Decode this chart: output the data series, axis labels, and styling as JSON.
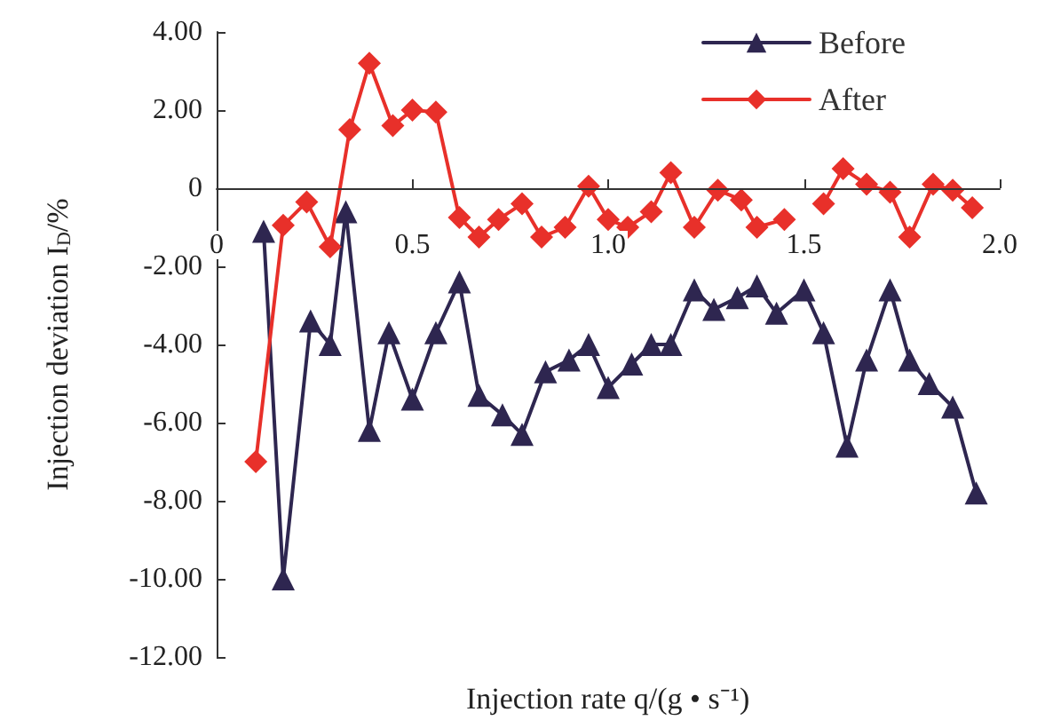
{
  "chart_data": {
    "type": "line",
    "xlabel": "Injection rate q/(g • s⁻¹)",
    "ylabel": "Injection deviation I$_{D}$/%",
    "xlim": [
      0,
      2.0
    ],
    "xticks": [
      0,
      0.5,
      {
        "value": 1,
        "label": "1.0"
      },
      1.5,
      {
        "value": 2,
        "label": "2.0"
      }
    ],
    "ylim": [
      -12,
      4
    ],
    "yticks": [
      {
        "value": -12,
        "label": "-12.00"
      },
      {
        "value": -10,
        "label": "-10.00"
      },
      {
        "value": -8,
        "label": "-8.00"
      },
      {
        "value": -6,
        "label": "-6.00"
      },
      {
        "value": -4,
        "label": "-4.00"
      },
      {
        "value": -2,
        "label": "-2.00"
      },
      0,
      {
        "value": 2,
        "label": "2.00"
      },
      {
        "value": 4,
        "label": "4.00"
      }
    ],
    "grid": false,
    "legend": "top right",
    "line_style": "solid",
    "series": [
      {
        "name": "Before",
        "color": "#2e2650",
        "marker": "triangle",
        "x": [
          0.12,
          0.17,
          0.24,
          0.29,
          0.33,
          0.39,
          0.44,
          0.5,
          0.56,
          0.62,
          0.67,
          0.73,
          0.78,
          0.84,
          0.9,
          0.95,
          1.0,
          1.06,
          1.11,
          1.16,
          1.22,
          1.27,
          1.33,
          1.38,
          1.43,
          1.5,
          1.55,
          1.61,
          1.66,
          1.72,
          1.77,
          1.82,
          1.88,
          1.94
        ],
        "values": [
          -1.1,
          -10.0,
          -3.4,
          -4.0,
          -0.6,
          -6.2,
          -3.7,
          -5.4,
          -3.7,
          -2.4,
          -5.3,
          -5.8,
          -6.3,
          -4.7,
          -4.4,
          -4.0,
          -5.1,
          -4.5,
          -4.0,
          -4.0,
          -2.6,
          -3.1,
          -2.8,
          -2.5,
          -3.2,
          -2.6,
          -3.7,
          -6.6,
          -4.4,
          -2.6,
          -4.4,
          -5.0,
          -5.6,
          -7.8
        ]
      },
      {
        "name": "After",
        "color": "#e8302a",
        "marker": "diamond",
        "x": [
          0.1,
          0.17,
          0.23,
          0.29,
          0.34,
          0.39,
          0.45,
          0.5,
          0.56,
          0.62,
          0.67,
          0.72,
          0.78,
          0.83,
          0.89,
          0.95,
          1.0,
          1.05,
          1.11,
          1.16,
          1.22,
          1.28,
          1.34,
          1.38,
          1.45,
          1.48,
          1.55,
          1.6,
          1.66,
          1.72,
          1.77,
          1.83,
          1.88,
          1.93
        ],
        "values": [
          -7.0,
          -0.95,
          -0.35,
          -1.5,
          1.5,
          3.2,
          1.6,
          2.0,
          1.95,
          -0.75,
          -1.25,
          -0.8,
          -0.4,
          -1.25,
          -1.0,
          0.05,
          -0.8,
          -1.0,
          -0.6,
          0.4,
          -1.0,
          -0.05,
          -0.3,
          -1.0,
          -0.8,
          null,
          -0.4,
          0.5,
          0.1,
          -0.1,
          -1.25,
          0.1,
          -0.05,
          -0.5
        ]
      }
    ]
  }
}
